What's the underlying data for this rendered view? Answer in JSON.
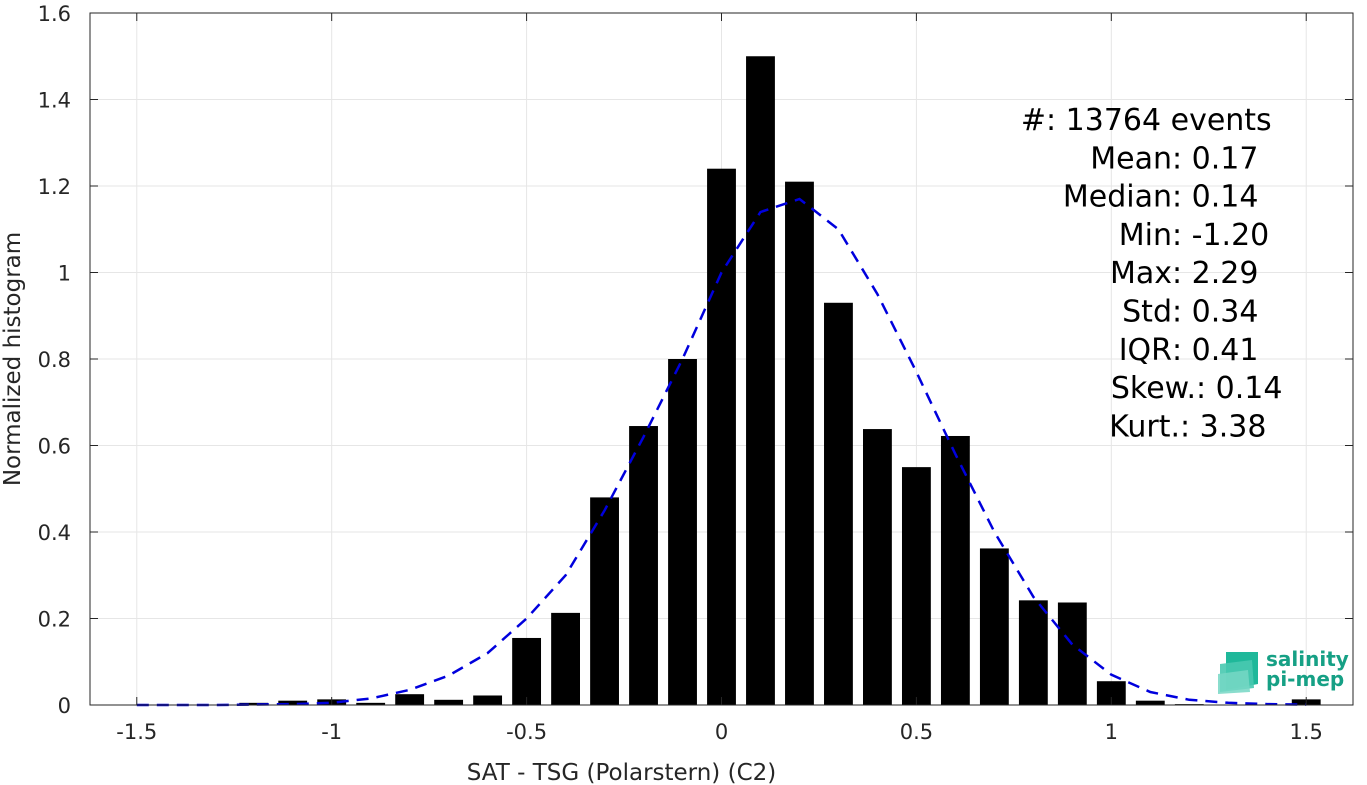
{
  "chart_data": {
    "type": "bar",
    "xlabel": "SAT - TSG (Polarstern) (C2)",
    "ylabel": "Normalized histogram",
    "xlim": [
      -1.62,
      1.62
    ],
    "ylim": [
      0,
      1.6
    ],
    "xticks": [
      "-1.5",
      "-1",
      "-0.5",
      "0",
      "0.5",
      "1",
      "1.5"
    ],
    "yticks": [
      "0",
      "0.2",
      "0.4",
      "0.6",
      "0.8",
      "1",
      "1.2",
      "1.4",
      "1.6"
    ],
    "grid": true,
    "bar_color": "#000000",
    "bar_width": 0.074,
    "bars": {
      "x": [
        -1.5,
        -1.4,
        -1.3,
        -1.2,
        -1.1,
        -1.0,
        -0.9,
        -0.8,
        -0.7,
        -0.6,
        -0.5,
        -0.4,
        -0.3,
        -0.2,
        -0.1,
        0.0,
        0.1,
        0.2,
        0.3,
        0.4,
        0.5,
        0.6,
        0.7,
        0.8,
        0.9,
        1.0,
        1.1,
        1.2,
        1.3,
        1.4,
        1.5
      ],
      "values": [
        0.0,
        0.0,
        0.0,
        0.005,
        0.01,
        0.013,
        0.005,
        0.025,
        0.012,
        0.022,
        0.155,
        0.213,
        0.48,
        0.645,
        0.8,
        1.24,
        1.5,
        1.21,
        0.93,
        0.638,
        0.55,
        0.622,
        0.362,
        0.242,
        0.237,
        0.055,
        0.01,
        0.002,
        0.0,
        0.0,
        0.013
      ]
    },
    "fit_curve": {
      "style": "dashed",
      "color": "#0000dd",
      "x": [
        -1.5,
        -1.4,
        -1.3,
        -1.2,
        -1.1,
        -1.0,
        -0.9,
        -0.8,
        -0.7,
        -0.6,
        -0.5,
        -0.4,
        -0.3,
        -0.2,
        -0.1,
        0.0,
        0.1,
        0.2,
        0.3,
        0.4,
        0.5,
        0.6,
        0.7,
        0.8,
        0.9,
        1.0,
        1.1,
        1.2,
        1.3,
        1.4,
        1.5
      ],
      "y": [
        0.0,
        0.0,
        0.0,
        0.001,
        0.002,
        0.005,
        0.015,
        0.035,
        0.068,
        0.12,
        0.2,
        0.3,
        0.45,
        0.62,
        0.8,
        1.0,
        1.14,
        1.17,
        1.1,
        0.95,
        0.77,
        0.58,
        0.4,
        0.25,
        0.14,
        0.07,
        0.03,
        0.012,
        0.005,
        0.002,
        0.001
      ]
    },
    "stats": [
      {
        "label": "#  ",
        "sep": ":",
        "value": " 13764 events"
      },
      {
        "label": "Mean ",
        "sep": ":",
        "value": " 0.17"
      },
      {
        "label": "Median ",
        "sep": ":",
        "value": " 0.14"
      },
      {
        "label": "Min ",
        "sep": ":",
        "value": " -1.20"
      },
      {
        "label": "Max ",
        "sep": ":",
        "value": " 2.29"
      },
      {
        "label": "Std ",
        "sep": ":",
        "value": " 0.34"
      },
      {
        "label": "IQR ",
        "sep": ":",
        "value": " 0.41"
      },
      {
        "label": "Skew. ",
        "sep": ":",
        "value": " 0.14"
      },
      {
        "label": "Kurt. ",
        "sep": ":",
        "value": " 3.38"
      }
    ]
  },
  "logo": {
    "line1": "salinity",
    "line2": "pi-mep",
    "color": "#16a085"
  }
}
